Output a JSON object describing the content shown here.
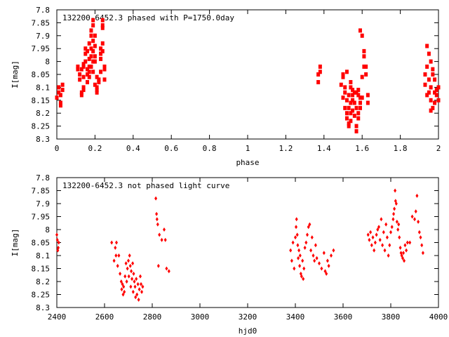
{
  "chart_data": [
    {
      "type": "scatter",
      "title": "132200-6452.3 phased with P=1750.0day",
      "xlabel": "phase",
      "ylabel": "I[mag]",
      "xlim": [
        0,
        2
      ],
      "ylim": [
        8.3,
        7.8
      ],
      "y_inverted": true,
      "xticks": [
        0,
        0.2,
        0.4,
        0.6,
        0.8,
        1,
        1.2,
        1.4,
        1.6,
        1.8,
        2
      ],
      "xtick_labels": [
        "0",
        "0.2",
        "0.4",
        "0.6",
        "0.8",
        "1",
        "1.2",
        "1.4",
        "1.6",
        "1.8",
        "2"
      ],
      "yticks": [
        7.8,
        7.85,
        7.9,
        7.95,
        8,
        8.05,
        8.1,
        8.15,
        8.2,
        8.25,
        8.3
      ],
      "ytick_labels": [
        "7.8",
        "7.85",
        "7.9",
        "7.95",
        "8",
        "8.05",
        "8.1",
        "8.15",
        "8.2",
        "8.25",
        "8.3"
      ],
      "marker_color": "#ff0000",
      "points": [
        [
          0.0,
          8.14
        ],
        [
          0.01,
          8.12
        ],
        [
          0.01,
          8.1
        ],
        [
          0.02,
          8.13
        ],
        [
          0.02,
          8.17
        ],
        [
          0.02,
          8.16
        ],
        [
          0.03,
          8.09
        ],
        [
          0.03,
          8.11
        ],
        [
          0.11,
          8.02
        ],
        [
          0.11,
          8.03
        ],
        [
          0.12,
          8.05
        ],
        [
          0.12,
          8.07
        ],
        [
          0.13,
          8.13
        ],
        [
          0.13,
          8.12
        ],
        [
          0.13,
          8.03
        ],
        [
          0.14,
          8.06
        ],
        [
          0.14,
          8.02
        ],
        [
          0.14,
          8.01
        ],
        [
          0.14,
          8.1
        ],
        [
          0.14,
          8.11
        ],
        [
          0.15,
          7.95
        ],
        [
          0.15,
          7.97
        ],
        [
          0.15,
          8.0
        ],
        [
          0.16,
          7.96
        ],
        [
          0.16,
          8.03
        ],
        [
          0.16,
          8.05
        ],
        [
          0.16,
          8.08
        ],
        [
          0.17,
          7.99
        ],
        [
          0.17,
          7.93
        ],
        [
          0.17,
          8.02
        ],
        [
          0.17,
          8.04
        ],
        [
          0.17,
          8.06
        ],
        [
          0.18,
          7.88
        ],
        [
          0.18,
          7.9
        ],
        [
          0.18,
          7.95
        ],
        [
          0.18,
          7.98
        ],
        [
          0.18,
          8.02
        ],
        [
          0.19,
          7.84
        ],
        [
          0.19,
          7.86
        ],
        [
          0.19,
          7.92
        ],
        [
          0.19,
          7.96
        ],
        [
          0.19,
          8.0
        ],
        [
          0.19,
          8.04
        ],
        [
          0.2,
          7.9
        ],
        [
          0.2,
          7.94
        ],
        [
          0.2,
          7.98
        ],
        [
          0.2,
          8.0
        ],
        [
          0.2,
          8.09
        ],
        [
          0.21,
          8.06
        ],
        [
          0.21,
          8.1
        ],
        [
          0.21,
          8.12
        ],
        [
          0.21,
          8.11
        ],
        [
          0.22,
          8.08
        ],
        [
          0.22,
          8.07
        ],
        [
          0.23,
          7.97
        ],
        [
          0.23,
          7.95
        ],
        [
          0.23,
          7.99
        ],
        [
          0.23,
          8.04
        ],
        [
          0.24,
          7.84
        ],
        [
          0.24,
          7.86
        ],
        [
          0.24,
          7.87
        ],
        [
          0.24,
          7.93
        ],
        [
          0.24,
          7.96
        ],
        [
          0.25,
          8.03
        ],
        [
          0.25,
          8.07
        ],
        [
          0.25,
          8.02
        ],
        [
          1.37,
          8.05
        ],
        [
          1.37,
          8.08
        ],
        [
          1.38,
          8.02
        ],
        [
          1.38,
          8.04
        ],
        [
          1.49,
          8.09
        ],
        [
          1.5,
          8.05
        ],
        [
          1.5,
          8.06
        ],
        [
          1.5,
          8.14
        ],
        [
          1.51,
          8.1
        ],
        [
          1.51,
          8.12
        ],
        [
          1.51,
          8.18
        ],
        [
          1.52,
          8.04
        ],
        [
          1.52,
          8.15
        ],
        [
          1.52,
          8.2
        ],
        [
          1.52,
          8.22
        ],
        [
          1.53,
          8.13
        ],
        [
          1.53,
          8.18
        ],
        [
          1.53,
          8.24
        ],
        [
          1.53,
          8.25
        ],
        [
          1.54,
          8.08
        ],
        [
          1.54,
          8.1
        ],
        [
          1.54,
          8.16
        ],
        [
          1.54,
          8.2
        ],
        [
          1.54,
          8.23
        ],
        [
          1.55,
          8.11
        ],
        [
          1.55,
          8.13
        ],
        [
          1.55,
          8.15
        ],
        [
          1.55,
          8.19
        ],
        [
          1.56,
          8.12
        ],
        [
          1.56,
          8.16
        ],
        [
          1.56,
          8.21
        ],
        [
          1.57,
          8.12
        ],
        [
          1.57,
          8.18
        ],
        [
          1.57,
          8.25
        ],
        [
          1.57,
          8.27
        ],
        [
          1.58,
          8.11
        ],
        [
          1.58,
          8.13
        ],
        [
          1.58,
          8.2
        ],
        [
          1.58,
          8.22
        ],
        [
          1.59,
          8.14
        ],
        [
          1.59,
          8.16
        ],
        [
          1.59,
          8.18
        ],
        [
          1.59,
          7.88
        ],
        [
          1.6,
          7.9
        ],
        [
          1.6,
          8.06
        ],
        [
          1.6,
          8.14
        ],
        [
          1.61,
          7.96
        ],
        [
          1.61,
          7.98
        ],
        [
          1.61,
          8.02
        ],
        [
          1.62,
          8.05
        ],
        [
          1.62,
          8.02
        ],
        [
          1.63,
          8.13
        ],
        [
          1.63,
          8.16
        ],
        [
          1.93,
          8.05
        ],
        [
          1.93,
          8.09
        ],
        [
          1.94,
          7.94
        ],
        [
          1.94,
          8.02
        ],
        [
          1.94,
          8.13
        ],
        [
          1.95,
          7.97
        ],
        [
          1.95,
          8.07
        ],
        [
          1.95,
          8.12
        ],
        [
          1.96,
          8.0
        ],
        [
          1.96,
          8.1
        ],
        [
          1.96,
          8.15
        ],
        [
          1.96,
          8.19
        ],
        [
          1.97,
          8.03
        ],
        [
          1.97,
          8.05
        ],
        [
          1.97,
          8.18
        ],
        [
          1.98,
          8.07
        ],
        [
          1.98,
          8.12
        ],
        [
          1.98,
          8.16
        ],
        [
          1.99,
          8.11
        ],
        [
          1.99,
          8.13
        ],
        [
          2.0,
          8.15
        ],
        [
          2.0,
          8.1
        ]
      ]
    },
    {
      "type": "scatter",
      "title": "132200-6452.3 not phased light curve",
      "xlabel": "hjd0",
      "ylabel": "I[mag]",
      "xlim": [
        2400,
        4000
      ],
      "ylim": [
        8.3,
        7.8
      ],
      "y_inverted": true,
      "xticks": [
        2400,
        2600,
        2800,
        3000,
        3200,
        3400,
        3600,
        3800,
        4000
      ],
      "xtick_labels": [
        "2400",
        "2600",
        "2800",
        "3000",
        "3200",
        "3400",
        "3600",
        "3800",
        "4000"
      ],
      "yticks": [
        7.8,
        7.85,
        7.9,
        7.95,
        8,
        8.05,
        8.1,
        8.15,
        8.2,
        8.25,
        8.3
      ],
      "ytick_labels": [
        "7.8",
        "7.85",
        "7.9",
        "7.95",
        "8",
        "8.05",
        "8.1",
        "8.15",
        "8.2",
        "8.25",
        "8.3"
      ],
      "marker_color": "#ff0000",
      "points": [
        [
          2400,
          8.02
        ],
        [
          2402,
          8.04
        ],
        [
          2404,
          8.08
        ],
        [
          2406,
          8.07
        ],
        [
          2408,
          8.05
        ],
        [
          2630,
          8.05
        ],
        [
          2640,
          8.12
        ],
        [
          2645,
          8.07
        ],
        [
          2648,
          8.1
        ],
        [
          2650,
          8.05
        ],
        [
          2655,
          8.14
        ],
        [
          2660,
          8.1
        ],
        [
          2665,
          8.17
        ],
        [
          2670,
          8.2
        ],
        [
          2672,
          8.23
        ],
        [
          2675,
          8.21
        ],
        [
          2678,
          8.25
        ],
        [
          2680,
          8.22
        ],
        [
          2683,
          8.24
        ],
        [
          2686,
          8.18
        ],
        [
          2690,
          8.13
        ],
        [
          2693,
          8.2
        ],
        [
          2696,
          8.15
        ],
        [
          2700,
          8.12
        ],
        [
          2702,
          8.18
        ],
        [
          2705,
          8.1
        ],
        [
          2708,
          8.14
        ],
        [
          2710,
          8.22
        ],
        [
          2712,
          8.16
        ],
        [
          2715,
          8.19
        ],
        [
          2718,
          8.13
        ],
        [
          2720,
          8.24
        ],
        [
          2722,
          8.17
        ],
        [
          2725,
          8.2
        ],
        [
          2728,
          8.22
        ],
        [
          2730,
          8.26
        ],
        [
          2733,
          8.19
        ],
        [
          2736,
          8.25
        ],
        [
          2740,
          8.21
        ],
        [
          2743,
          8.27
        ],
        [
          2746,
          8.23
        ],
        [
          2750,
          8.18
        ],
        [
          2753,
          8.21
        ],
        [
          2756,
          8.24
        ],
        [
          2760,
          8.22
        ],
        [
          2815,
          7.88
        ],
        [
          2818,
          7.94
        ],
        [
          2820,
          7.96
        ],
        [
          2823,
          7.98
        ],
        [
          2826,
          8.14
        ],
        [
          2830,
          8.02
        ],
        [
          2840,
          8.04
        ],
        [
          2850,
          8.0
        ],
        [
          2855,
          8.04
        ],
        [
          2860,
          8.15
        ],
        [
          2870,
          8.16
        ],
        [
          3380,
          8.08
        ],
        [
          3385,
          8.12
        ],
        [
          3390,
          8.05
        ],
        [
          3395,
          8.15
        ],
        [
          3400,
          8.03
        ],
        [
          3403,
          7.99
        ],
        [
          3405,
          7.96
        ],
        [
          3408,
          8.02
        ],
        [
          3410,
          8.06
        ],
        [
          3412,
          8.11
        ],
        [
          3415,
          8.08
        ],
        [
          3418,
          8.14
        ],
        [
          3420,
          8.1
        ],
        [
          3423,
          8.17
        ],
        [
          3426,
          8.18
        ],
        [
          3430,
          8.12
        ],
        [
          3433,
          8.19
        ],
        [
          3436,
          8.15
        ],
        [
          3440,
          8.07
        ],
        [
          3445,
          8.05
        ],
        [
          3450,
          8.02
        ],
        [
          3455,
          7.99
        ],
        [
          3460,
          7.98
        ],
        [
          3465,
          8.08
        ],
        [
          3470,
          8.03
        ],
        [
          3475,
          8.1
        ],
        [
          3480,
          8.12
        ],
        [
          3485,
          8.06
        ],
        [
          3490,
          8.11
        ],
        [
          3500,
          8.13
        ],
        [
          3510,
          8.15
        ],
        [
          3520,
          8.09
        ],
        [
          3525,
          8.16
        ],
        [
          3530,
          8.17
        ],
        [
          3535,
          8.12
        ],
        [
          3540,
          8.14
        ],
        [
          3550,
          8.1
        ],
        [
          3560,
          8.08
        ],
        [
          3705,
          8.02
        ],
        [
          3710,
          8.04
        ],
        [
          3715,
          8.01
        ],
        [
          3720,
          8.06
        ],
        [
          3725,
          8.03
        ],
        [
          3730,
          8.08
        ],
        [
          3735,
          8.05
        ],
        [
          3740,
          8.02
        ],
        [
          3745,
          8.0
        ],
        [
          3750,
          7.99
        ],
        [
          3755,
          8.04
        ],
        [
          3760,
          7.96
        ],
        [
          3765,
          8.06
        ],
        [
          3770,
          8.01
        ],
        [
          3775,
          8.08
        ],
        [
          3780,
          7.98
        ],
        [
          3785,
          8.03
        ],
        [
          3790,
          8.1
        ],
        [
          3795,
          8.06
        ],
        [
          3800,
          8.01
        ],
        [
          3805,
          7.99
        ],
        [
          3810,
          7.96
        ],
        [
          3812,
          7.94
        ],
        [
          3815,
          7.92
        ],
        [
          3818,
          7.85
        ],
        [
          3820,
          7.89
        ],
        [
          3823,
          7.9
        ],
        [
          3826,
          7.97
        ],
        [
          3830,
          8.0
        ],
        [
          3833,
          7.98
        ],
        [
          3836,
          8.03
        ],
        [
          3840,
          8.07
        ],
        [
          3843,
          8.09
        ],
        [
          3846,
          8.1
        ],
        [
          3850,
          8.11
        ],
        [
          3853,
          8.09
        ],
        [
          3856,
          8.12
        ],
        [
          3860,
          8.06
        ],
        [
          3865,
          8.08
        ],
        [
          3870,
          8.05
        ],
        [
          3880,
          8.05
        ],
        [
          3890,
          7.95
        ],
        [
          3900,
          7.96
        ],
        [
          3905,
          7.93
        ],
        [
          3910,
          7.87
        ],
        [
          3915,
          7.97
        ],
        [
          3920,
          8.01
        ],
        [
          3925,
          8.03
        ],
        [
          3930,
          8.06
        ],
        [
          3935,
          8.09
        ]
      ]
    }
  ]
}
